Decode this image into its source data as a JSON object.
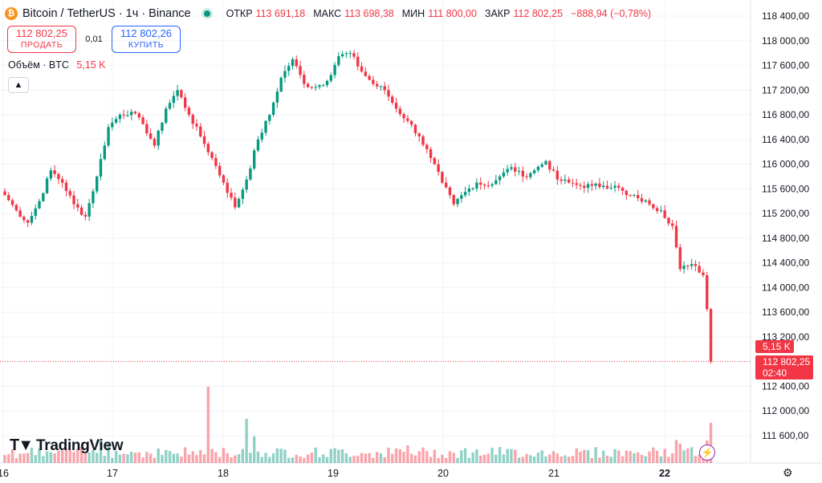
{
  "header": {
    "coin_icon": "bitcoin-icon",
    "symbol": "Bitcoin / TetherUS · 1ч · Binance",
    "open_label": "ОТКР",
    "open": "113 691,18",
    "high_label": "МАКС",
    "high": "113 698,38",
    "low_label": "МИН",
    "low": "111 800,00",
    "close_label": "ЗАКР",
    "close": "112 802,25",
    "change": "−888,94 (−0,78%)"
  },
  "trade": {
    "sell_price": "112 802,25",
    "sell_label": "ПРОДАТЬ",
    "spread": "0,01",
    "buy_price": "112 802,26",
    "buy_label": "КУПИТЬ"
  },
  "volume_legend": {
    "label": "Объём · BTC",
    "value": "5,15 K"
  },
  "collapse_icon": "chevron-up-icon",
  "price_label": {
    "price": "112 802,25",
    "countdown": "02:40"
  },
  "volume_label": "5,15 K",
  "logo": "TradingView",
  "chart_data": {
    "type": "candlestick",
    "title": "Bitcoin / TetherUS · 1ч · Binance",
    "y_ticks": [
      "118 400,00",
      "118 000,00",
      "117 600,00",
      "117 200,00",
      "116 800,00",
      "116 400,00",
      "116 000,00",
      "115 600,00",
      "115 200,00",
      "114 800,00",
      "114 400,00",
      "114 000,00",
      "113 600,00",
      "113 200,00",
      "112 400,00",
      "112 000,00",
      "111 600,00"
    ],
    "x_ticks": [
      "16",
      "17",
      "18",
      "19",
      "20",
      "21",
      "22"
    ],
    "ylim": [
      111300,
      118600
    ],
    "up_color": "#089981",
    "down_color": "#f23645",
    "close_path": [
      [
        0,
        115500
      ],
      [
        3,
        115250
      ],
      [
        6,
        115050
      ],
      [
        9,
        115400
      ],
      [
        12,
        115900
      ],
      [
        15,
        115700
      ],
      [
        18,
        115350
      ],
      [
        21,
        115150
      ],
      [
        24,
        115800
      ],
      [
        27,
        116600
      ],
      [
        30,
        116800
      ],
      [
        33,
        116850
      ],
      [
        36,
        116650
      ],
      [
        39,
        116300
      ],
      [
        42,
        116900
      ],
      [
        45,
        117200
      ],
      [
        48,
        116800
      ],
      [
        51,
        116450
      ],
      [
        54,
        116100
      ],
      [
        57,
        115700
      ],
      [
        60,
        115300
      ],
      [
        63,
        115750
      ],
      [
        66,
        116400
      ],
      [
        69,
        116800
      ],
      [
        72,
        117400
      ],
      [
        75,
        117700
      ],
      [
        78,
        117300
      ],
      [
        81,
        117250
      ],
      [
        84,
        117350
      ],
      [
        87,
        117750
      ],
      [
        90,
        117800
      ],
      [
        93,
        117500
      ],
      [
        96,
        117300
      ],
      [
        99,
        117200
      ],
      [
        102,
        116900
      ],
      [
        105,
        116700
      ],
      [
        108,
        116450
      ],
      [
        111,
        116100
      ],
      [
        114,
        115700
      ],
      [
        117,
        115350
      ],
      [
        120,
        115550
      ],
      [
        123,
        115700
      ],
      [
        126,
        115650
      ],
      [
        129,
        115800
      ],
      [
        132,
        115950
      ],
      [
        135,
        115800
      ],
      [
        138,
        115900
      ],
      [
        141,
        116050
      ],
      [
        144,
        115750
      ],
      [
        147,
        115700
      ],
      [
        150,
        115650
      ],
      [
        153,
        115650
      ],
      [
        156,
        115650
      ],
      [
        159,
        115650
      ],
      [
        162,
        115500
      ],
      [
        165,
        115450
      ],
      [
        168,
        115350
      ],
      [
        171,
        115250
      ],
      [
        174,
        115000
      ],
      [
        176,
        114300
      ],
      [
        178,
        114350
      ],
      [
        180,
        114350
      ],
      [
        182,
        114200
      ],
      [
        183,
        113650
      ],
      [
        184,
        112800
      ]
    ]
  }
}
